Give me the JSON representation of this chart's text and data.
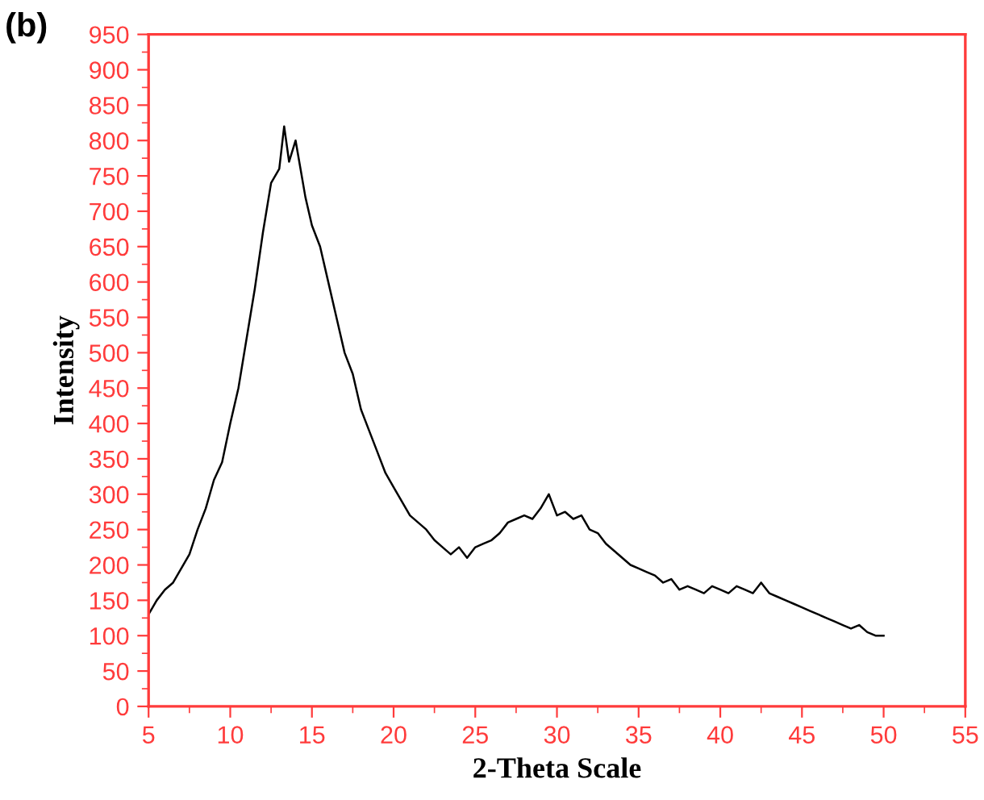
{
  "chart_data": {
    "type": "line",
    "xlabel": "2-Theta Scale",
    "ylabel": "Intensity",
    "annotations": [
      "(b)"
    ],
    "xlim": [
      5,
      55
    ],
    "ylim": [
      0,
      950
    ],
    "xticks": [
      5,
      10,
      15,
      20,
      25,
      30,
      35,
      40,
      45,
      50,
      55
    ],
    "yticks": [
      0,
      50,
      100,
      150,
      200,
      250,
      300,
      350,
      400,
      450,
      500,
      550,
      600,
      650,
      700,
      750,
      800,
      850,
      900,
      950
    ],
    "grid": false,
    "legend": false,
    "marker": "none",
    "line_style": "solid",
    "series": [
      {
        "color": "#000000",
        "x": [
          5,
          5.5,
          6,
          6.5,
          7,
          7.5,
          8,
          8.5,
          9,
          9.5,
          10,
          10.5,
          11,
          11.5,
          12,
          12.5,
          13,
          13.3,
          13.6,
          14,
          14.3,
          14.6,
          15,
          15.5,
          16,
          16.5,
          17,
          17.5,
          18,
          18.5,
          19,
          19.5,
          20,
          20.5,
          21,
          21.5,
          22,
          22.5,
          23,
          23.5,
          24,
          24.5,
          25,
          25.5,
          26,
          26.5,
          27,
          27.5,
          28,
          28.5,
          29,
          29.5,
          30,
          30.5,
          31,
          31.5,
          32,
          32.5,
          33,
          33.5,
          34,
          34.5,
          35,
          35.5,
          36,
          36.5,
          37,
          37.5,
          38,
          38.5,
          39,
          39.5,
          40,
          40.5,
          41,
          41.5,
          42,
          42.5,
          43,
          43.5,
          44,
          44.5,
          45,
          45.5,
          46,
          46.5,
          47,
          47.5,
          48,
          48.5,
          49,
          49.5,
          50
        ],
        "values": [
          130,
          150,
          165,
          175,
          195,
          215,
          250,
          280,
          320,
          345,
          400,
          450,
          520,
          590,
          670,
          740,
          760,
          820,
          770,
          800,
          760,
          720,
          680,
          650,
          600,
          550,
          500,
          470,
          420,
          390,
          360,
          330,
          310,
          290,
          270,
          260,
          250,
          235,
          225,
          215,
          225,
          210,
          225,
          230,
          235,
          245,
          260,
          265,
          270,
          265,
          280,
          300,
          270,
          275,
          265,
          270,
          250,
          245,
          230,
          220,
          210,
          200,
          195,
          190,
          185,
          175,
          180,
          165,
          170,
          165,
          160,
          170,
          165,
          160,
          170,
          165,
          160,
          175,
          160,
          155,
          150,
          145,
          140,
          135,
          130,
          125,
          120,
          115,
          110,
          115,
          105,
          100,
          100
        ]
      }
    ]
  }
}
